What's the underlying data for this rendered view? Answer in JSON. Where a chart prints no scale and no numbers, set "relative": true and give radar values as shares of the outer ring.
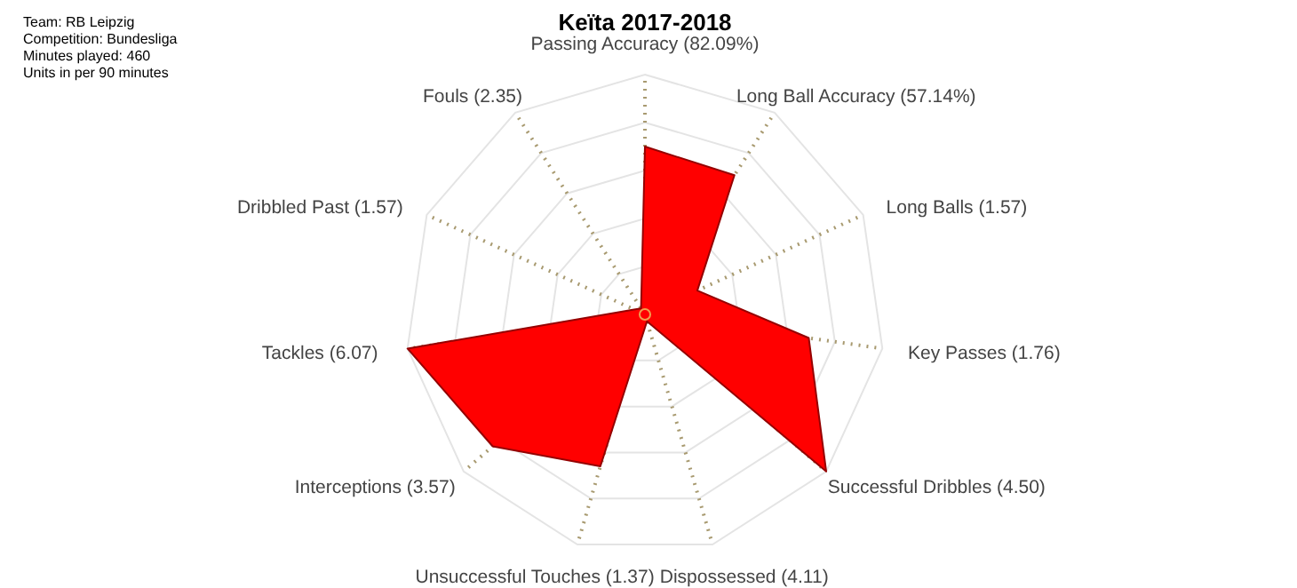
{
  "chart_data": {
    "type": "radar",
    "title": "Keïta 2017-2018",
    "relative": true,
    "categories": [
      "Passing Accuracy (82.09%)",
      "Long Ball Accuracy (57.14%)",
      "Long Balls (1.57)",
      "Key Passes (1.76)",
      "Successful Dribbles (4.50)",
      "Dispossessed (4.11)",
      "Unsuccessful Touches (1.37)",
      "Interceptions (3.57)",
      "Tackles (6.07)",
      "Dribbled Past (1.57)",
      "Fouls (2.35)"
    ],
    "series": [
      {
        "color": "#ff0000",
        "values": [
          0.7,
          0.69,
          0.24,
          0.69,
          1.0,
          0.03,
          0.66,
          0.84,
          1.0,
          0.05,
          0.03
        ]
      }
    ],
    "annotations": [
      "Team: RB Leipzig",
      "Competition: Bundesliga",
      "Minutes played: 460",
      "Units in per 90 minutes"
    ],
    "grid": true,
    "legend": false
  }
}
